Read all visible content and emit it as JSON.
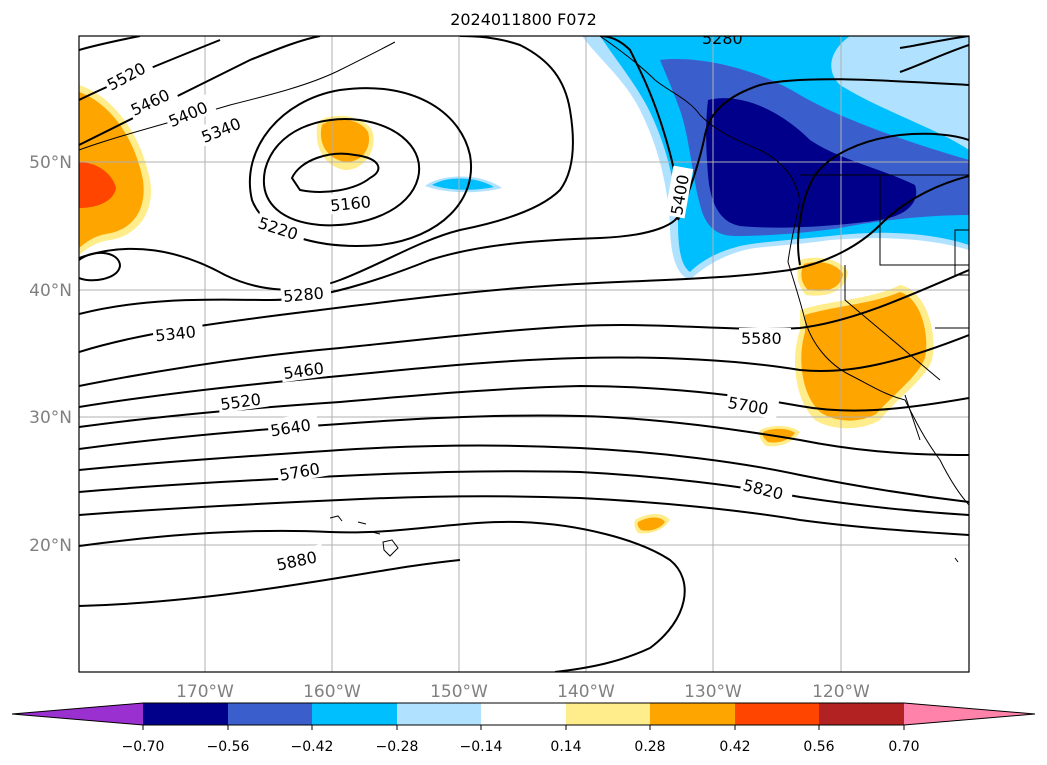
{
  "title": "2024011800 F072",
  "map": {
    "lat_labels": [
      "50°N",
      "40°N",
      "30°N",
      "20°N"
    ],
    "lon_labels": [
      "170°W",
      "160°W",
      "150°W",
      "140°W",
      "130°W",
      "120°W"
    ],
    "contour_labels": [
      "5520",
      "5460",
      "5400",
      "5340",
      "5160",
      "5220",
      "5280",
      "5340",
      "5460",
      "5520",
      "5640",
      "5760",
      "5880",
      "5400",
      "5580",
      "5700",
      "5820",
      "5280"
    ],
    "colors": {
      "grid": "#b0b0b0",
      "axis_labels": "#808080"
    }
  },
  "colorbar": {
    "tick_labels": [
      "−0.70",
      "−0.56",
      "−0.42",
      "−0.28",
      "−0.14",
      "0.14",
      "0.28",
      "0.42",
      "0.56",
      "0.70"
    ],
    "colors": [
      "#9b30d0",
      "#00008b",
      "#3a5fcd",
      "#00bfff",
      "#b0e2ff",
      "#ffffff",
      "#ffec8b",
      "#ffa500",
      "#ff4500",
      "#b22222",
      "#ff82ab"
    ]
  }
}
